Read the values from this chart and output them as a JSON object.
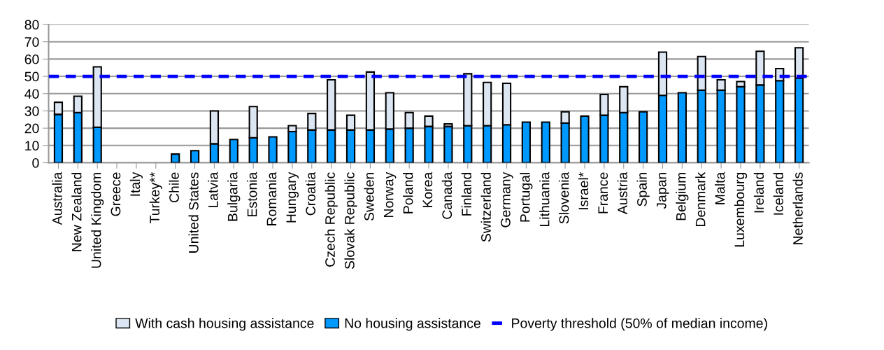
{
  "chart_data": {
    "type": "bar",
    "stacked": true,
    "categories": [
      "Australia",
      "New Zealand",
      "United Kingdom",
      "Greece",
      "Italy",
      "Turkey**",
      "Chile",
      "United States",
      "Latvia",
      "Bulgaria",
      "Estonia",
      "Romania",
      "Hungary",
      "Croatia",
      "Czech Republic",
      "Slovak Republic",
      "Sweden",
      "Norway",
      "Poland",
      "Korea",
      "Canada",
      "Finland",
      "Switzerland",
      "Germany",
      "Portugal",
      "Lithuania",
      "Slovenia",
      "Israel*",
      "France",
      "Austria",
      "Spain",
      "Japan",
      "Belgium",
      "Denmark",
      "Malta",
      "Luxembourg",
      "Ireland",
      "Iceland",
      "Netherlands"
    ],
    "series": [
      {
        "name": "No housing assistance",
        "color": "#0099ff",
        "values": [
          28,
          29,
          20.5,
          null,
          null,
          null,
          5,
          7,
          11,
          13.5,
          14.5,
          15,
          18,
          19,
          19,
          19,
          19,
          19.5,
          20,
          21,
          21,
          21.5,
          21.5,
          22,
          23.5,
          23.5,
          23,
          27,
          27.5,
          29,
          29.5,
          39,
          40.5,
          42,
          42,
          44,
          45,
          47.5,
          49
        ]
      },
      {
        "name": "With cash housing assistance",
        "color": "#dce6f2",
        "values": [
          7,
          9.5,
          35,
          null,
          null,
          null,
          null,
          null,
          19,
          null,
          18,
          null,
          3.5,
          9.5,
          29,
          8.5,
          33.5,
          21,
          9,
          6,
          1.5,
          30,
          25,
          24,
          null,
          null,
          6.5,
          null,
          12,
          15,
          null,
          25,
          null,
          19.5,
          6,
          3,
          19.5,
          7,
          17.5
        ]
      }
    ],
    "ref_lines": [
      {
        "axis": "y",
        "value": 50,
        "label": "Poverty threshold (50% of median income)",
        "color": "#0000ff",
        "line_style": "dashed"
      }
    ],
    "ylim": [
      0,
      80
    ],
    "yticks": [
      0,
      10,
      20,
      30,
      40,
      50,
      60,
      70,
      80
    ],
    "grid": "y",
    "legend": "bottom"
  }
}
